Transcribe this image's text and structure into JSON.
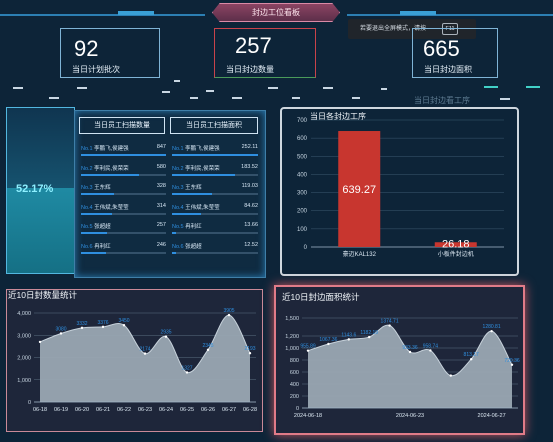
{
  "header": {
    "title": "封边工位看板",
    "fullscreen_tip": "若要退出全屏模式，请按",
    "fullscreen_key": "F11"
  },
  "kpis": [
    {
      "value": "92",
      "label": "当日计划批次"
    },
    {
      "value": "257",
      "label": "当日封边数量"
    },
    {
      "value": "665",
      "label": "当日封边面积"
    }
  ],
  "ghost_title": "当日封边看工序",
  "gauge": {
    "value": "52.17%"
  },
  "rank_qty": {
    "header": "当日员工扫描数量",
    "rows": [
      {
        "no": "No.1",
        "name": "李鹏飞,侯建强",
        "value": "847",
        "pct": 1.0
      },
      {
        "no": "No.2",
        "name": "李利民,侯荣荣",
        "value": "580",
        "pct": 0.68
      },
      {
        "no": "No.3",
        "name": "王东辉",
        "value": "328",
        "pct": 0.39
      },
      {
        "no": "No.4",
        "name": "王伟斌,朱莹莹",
        "value": "314",
        "pct": 0.37
      },
      {
        "no": "No.5",
        "name": "张超超",
        "value": "257",
        "pct": 0.3
      },
      {
        "no": "No.6",
        "name": "冉利红",
        "value": "246",
        "pct": 0.29
      }
    ]
  },
  "rank_area": {
    "header": "当日员工扫描面积",
    "rows": [
      {
        "no": "No.1",
        "name": "李鹏飞,侯建强",
        "value": "252.11",
        "pct": 1.0
      },
      {
        "no": "No.2",
        "name": "李利民,侯荣荣",
        "value": "183.52",
        "pct": 0.73
      },
      {
        "no": "No.3",
        "name": "王东辉",
        "value": "119.03",
        "pct": 0.47
      },
      {
        "no": "No.4",
        "name": "王伟斌,朱莹莹",
        "value": "84.62",
        "pct": 0.34
      },
      {
        "no": "No.5",
        "name": "冉利红",
        "value": "13.66",
        "pct": 0.05
      },
      {
        "no": "No.6",
        "name": "张超超",
        "value": "12.52",
        "pct": 0.05
      }
    ]
  },
  "colors": {
    "accent": "#2f8fe0",
    "bar": "#c8362f",
    "area": "#9aa7b2",
    "panel_red": "#e07b88"
  },
  "chart_data": [
    {
      "type": "bar",
      "title": "当日各封边工序",
      "categories": [
        "豪迈KAL132",
        "小板件封边机"
      ],
      "values": [
        639.27,
        26.18
      ],
      "ylim": [
        0,
        700
      ],
      "yticks": [
        "0",
        "100",
        "200",
        "300",
        "400",
        "500",
        "600",
        "700"
      ],
      "grid": true
    },
    {
      "type": "area",
      "title": "近10日封数量统计",
      "categories": [
        "06-18",
        "06-19",
        "06-20",
        "06-21",
        "06-22",
        "06-23",
        "06-24",
        "06-25",
        "06-26",
        "06-27",
        "06-28"
      ],
      "values": [
        2700,
        3080,
        3332,
        3376,
        3450,
        2174,
        2935,
        1327,
        2345,
        3905,
        2193
      ],
      "labels": [
        "",
        "3080",
        "3332",
        "3376",
        "3450",
        "2174",
        "2935",
        "1327",
        "2345",
        "3905",
        "2193"
      ],
      "ylim": [
        0,
        4000
      ],
      "yticks": [
        "0",
        "1,000",
        "2,000",
        "3,000",
        "4,000"
      ],
      "grid": true
    },
    {
      "type": "area",
      "title": "近10日封边面积统计",
      "categories": [
        "2024-06-18",
        "2024-06-23",
        "2024-06-27"
      ],
      "x_points": [
        "",
        "",
        "",
        "",
        "",
        "",
        "",
        "",
        "",
        "",
        ""
      ],
      "values": [
        955.89,
        1067.36,
        1143.6,
        1182.19,
        1374.71,
        933.36,
        958.74,
        540,
        813.17,
        1280.81,
        720.36
      ],
      "labels": [
        "955.89",
        "1067.36",
        "1143.6",
        "1182.19",
        "1374.71",
        "933.36",
        "958.74",
        "",
        "813.17",
        "1280.81",
        "720.36"
      ],
      "ylim": [
        0,
        1500
      ],
      "yticks": [
        "0",
        "200",
        "400",
        "600",
        "800",
        "1,000",
        "1,200",
        "1,500"
      ],
      "grid": true
    }
  ]
}
